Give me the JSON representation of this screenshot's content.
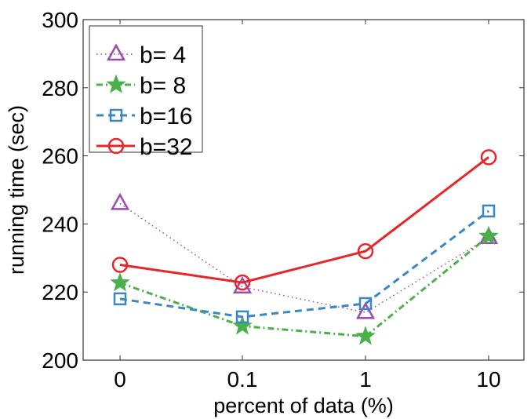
{
  "chart_data": {
    "type": "line",
    "xlabel": "percent of data (%)",
    "ylabel": "running time (sec)",
    "categories": [
      "0",
      "0.1",
      "1",
      "10"
    ],
    "ylim": [
      200,
      300
    ],
    "yticks": [
      "200",
      "220",
      "240",
      "260",
      "280",
      "300"
    ],
    "grid": false,
    "legend_position": "top-left",
    "series": [
      {
        "name": "b= 4",
        "values": [
          246,
          221.5,
          214,
          236
        ],
        "color": "#9b4bb0",
        "marker": "triangle",
        "line": "dotted"
      },
      {
        "name": "b= 8",
        "values": [
          222.7,
          210,
          207,
          236.4
        ],
        "color": "#4bb04b",
        "marker": "star",
        "line": "dashdot"
      },
      {
        "name": "b=16",
        "values": [
          218,
          212.7,
          216.6,
          243.8
        ],
        "color": "#3a87c8",
        "marker": "square",
        "line": "dashed"
      },
      {
        "name": "b=32",
        "values": [
          228,
          222.8,
          232,
          259.6
        ],
        "color": "#e8262a",
        "marker": "circle",
        "line": "solid"
      }
    ]
  }
}
